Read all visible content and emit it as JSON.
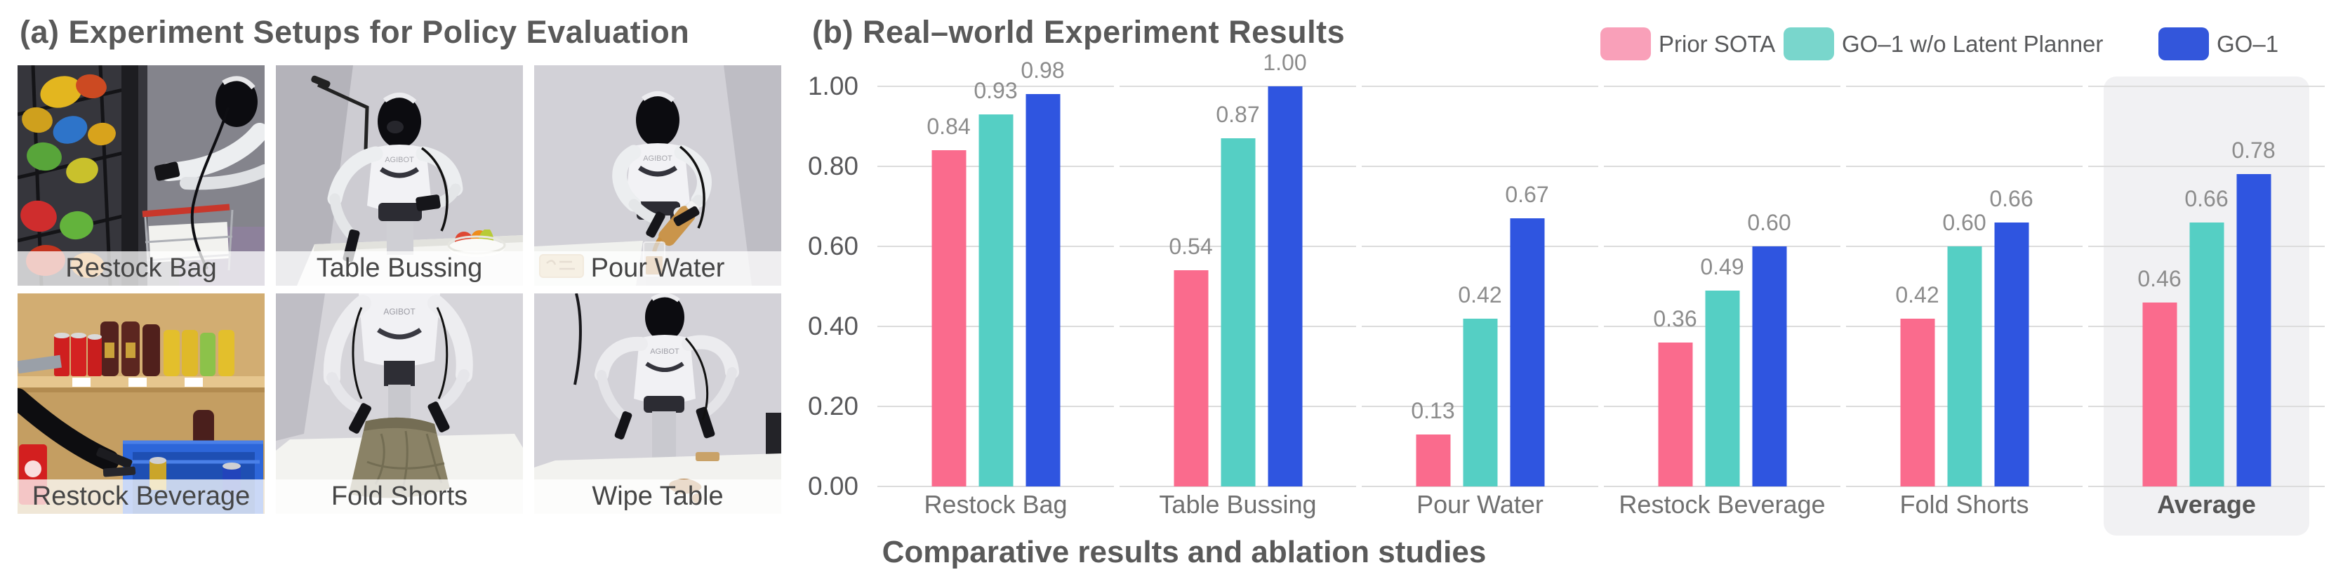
{
  "panel_a": {
    "title": "(a) Experiment Setups for Policy Evaluation",
    "robot_brand": "AGIBOT",
    "photos": [
      {
        "label": "Restock Bag"
      },
      {
        "label": "Table Bussing"
      },
      {
        "label": "Pour Water"
      },
      {
        "label": "Restock Beverage"
      },
      {
        "label": "Fold Shorts"
      },
      {
        "label": "Wipe Table"
      }
    ]
  },
  "panel_b": {
    "title": "(b) Real–world Experiment Results",
    "caption": "Comparative results and ablation studies",
    "legend": [
      {
        "label": "Prior SOTA",
        "swatch": "#f9a0b9"
      },
      {
        "label": "GO–1 w/o Latent Planner",
        "swatch": "#79d6cc"
      },
      {
        "label": "GO–1",
        "swatch": "#3356db"
      }
    ]
  },
  "chart_data": {
    "type": "bar",
    "categories": [
      "Restock Bag",
      "Table Bussing",
      "Pour Water",
      "Restock Beverage",
      "Fold Shorts",
      "Average"
    ],
    "series": [
      {
        "name": "Prior SOTA",
        "color": "#fa6b8d",
        "values": [
          0.84,
          0.54,
          0.13,
          0.36,
          0.42,
          0.46
        ]
      },
      {
        "name": "GO–1 w/o Latent Planner",
        "color": "#55cfc4",
        "values": [
          0.93,
          0.87,
          0.42,
          0.49,
          0.6,
          0.66
        ]
      },
      {
        "name": "GO–1",
        "color": "#2f55e0",
        "values": [
          0.98,
          1.0,
          0.67,
          0.6,
          0.66,
          0.78
        ]
      }
    ],
    "yticks": [
      "0.00",
      "0.20",
      "0.40",
      "0.60",
      "0.80",
      "1.00"
    ],
    "ylim": [
      0,
      1
    ],
    "grid": true,
    "legend_position": "top-right",
    "highlight_category": "Average",
    "xlabel": "Comparative results and ablation studies"
  }
}
